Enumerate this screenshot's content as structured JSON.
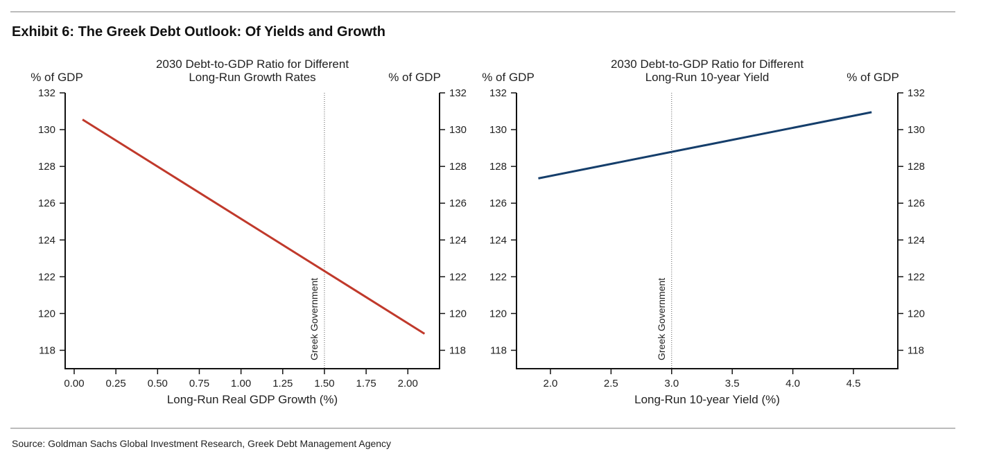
{
  "exhibit_title": "Exhibit 6: The Greek Debt Outlook: Of Yields and Growth",
  "source": "Source: Goldman Sachs Global Investment Research, Greek Debt Management Agency",
  "chart_data": [
    {
      "type": "line",
      "title": [
        "2030 Debt-to-GDP Ratio for Different",
        "Long-Run Growth Rates"
      ],
      "xlabel": "Long-Run Real GDP Growth (%)",
      "ylabel_left": "% of GDP",
      "ylabel_right": "% of GDP",
      "xlim": [
        -0.054,
        2.19
      ],
      "ylim": [
        117,
        132
      ],
      "xticks": [
        "0.00",
        "0.25",
        "0.50",
        "0.75",
        "1.00",
        "1.25",
        "1.50",
        "1.75",
        "2.00"
      ],
      "yticks": [
        118,
        120,
        122,
        124,
        126,
        128,
        130,
        132
      ],
      "grid": false,
      "color": "#c0392b",
      "series": [
        {
          "x": [
            0.05,
            2.1
          ],
          "y": [
            130.55,
            118.9
          ]
        }
      ],
      "vline": {
        "x": 1.5,
        "label": "Greek Government"
      }
    },
    {
      "type": "line",
      "title": [
        "2030 Debt-to-GDP Ratio for Different",
        "Long-Run 10-year Yield"
      ],
      "xlabel": "Long-Run 10-year Yield (%)",
      "ylabel_left": "% of GDP",
      "ylabel_right": "% of GDP",
      "xlim": [
        1.72,
        4.866
      ],
      "ylim": [
        117,
        132
      ],
      "xticks": [
        "2.0",
        "2.5",
        "3.0",
        "3.5",
        "4.0",
        "4.5"
      ],
      "yticks": [
        118,
        120,
        122,
        124,
        126,
        128,
        130,
        132
      ],
      "grid": false,
      "color": "#153e6b",
      "series": [
        {
          "x": [
            1.9,
            4.65
          ],
          "y": [
            127.35,
            130.95
          ]
        }
      ],
      "vline": {
        "x": 3.0,
        "label": "Greek Government"
      }
    }
  ]
}
